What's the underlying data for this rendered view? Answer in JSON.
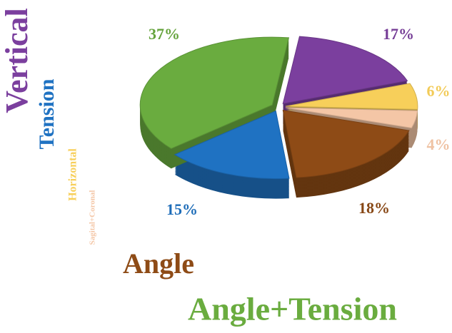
{
  "chart_data": {
    "type": "pie",
    "categories": [
      "Vertical",
      "Horizontal",
      "Sagital+Coronal",
      "Angle",
      "Tension",
      "Angle+Tension"
    ],
    "values": [
      17,
      6,
      4,
      18,
      15,
      37
    ],
    "value_labels": [
      "17%",
      "6%",
      "4%",
      "18%",
      "15%",
      "37%"
    ],
    "colors": [
      "#7b3f9e",
      "#f7cf5a",
      "#f4c6a6",
      "#8e4b16",
      "#1f72c2",
      "#6aac3f"
    ]
  }
}
